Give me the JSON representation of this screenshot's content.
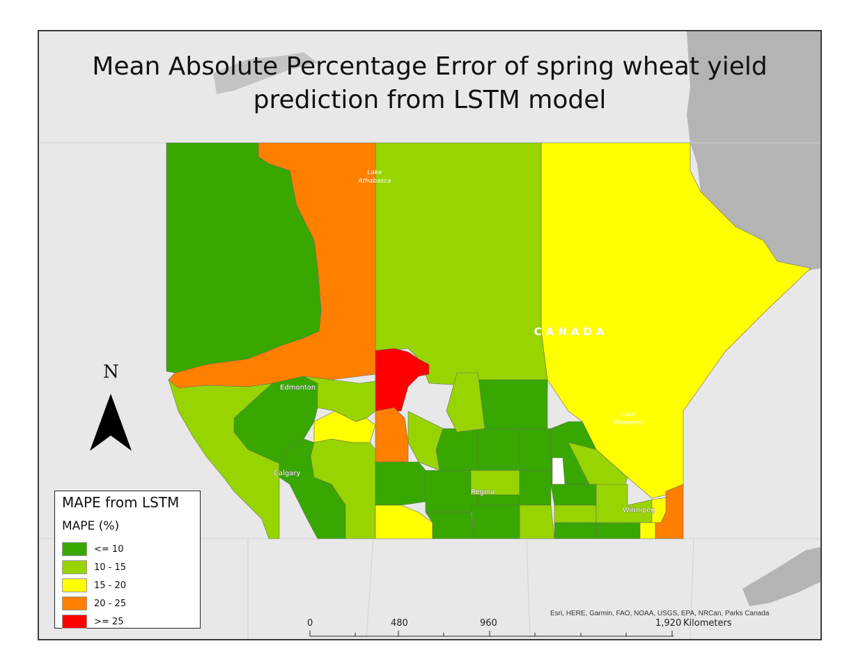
{
  "title_line1": "Mean Absolute Percentage Error of spring wheat yield",
  "title_line2": "prediction from LSTM model",
  "country_label": "CANADA",
  "lakes": {
    "athabasca": [
      "Lake",
      "Athabasca"
    ],
    "winnipeg": [
      "Lake",
      "Winnipeg"
    ]
  },
  "cities": {
    "edmonton": "Edmonton",
    "calgary": "Calgary",
    "regina": "Regina",
    "winnipeg": "Winnipeg"
  },
  "north_arrow_label": "N",
  "legend": {
    "title": "MAPE from LSTM",
    "subtitle": "MAPE (%)",
    "items": [
      {
        "label": "<= 10",
        "color": "#38a800"
      },
      {
        "label": "10 - 15",
        "color": "#98d400"
      },
      {
        "label": "15 - 20",
        "color": "#ffff00"
      },
      {
        "label": "20 - 25",
        "color": "#ff7f00"
      },
      {
        "label": ">= 25",
        "color": "#ff0000"
      }
    ]
  },
  "scale_bar": {
    "labels": [
      "0",
      "480",
      "960",
      "1,920"
    ],
    "unit": "Kilometers"
  },
  "attribution": "Esri, HERE, Garmin, FAO, NOAA, USGS, EPA, NRCan, Parks Canada",
  "colors": {
    "class_1": "#38a800",
    "class_2": "#98d400",
    "class_3": "#ffff00",
    "class_4": "#ff7f00",
    "class_5": "#ff0000",
    "no_data": "#ffffff",
    "land": "#e8e8e8",
    "water": "#b0b0b0"
  }
}
